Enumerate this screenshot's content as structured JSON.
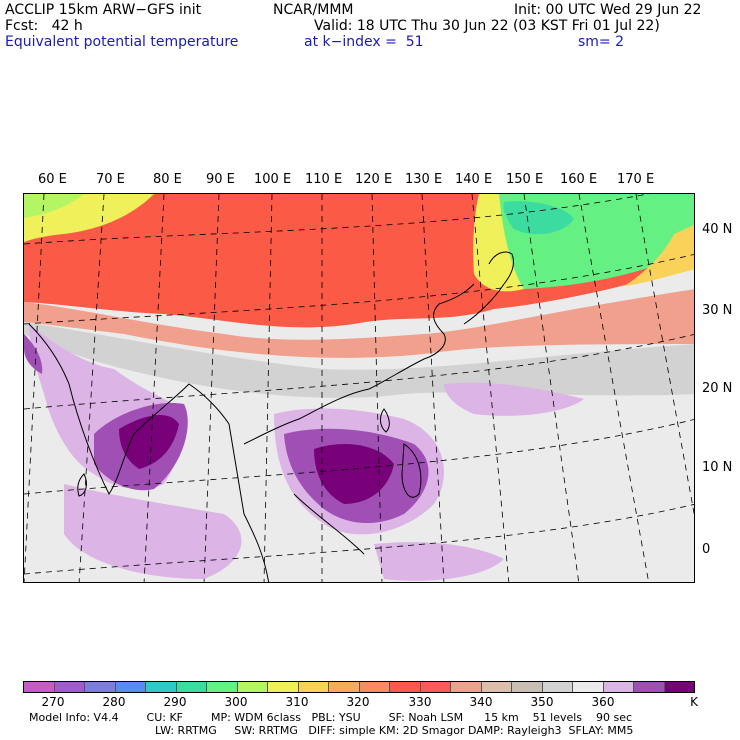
{
  "header": {
    "line1_left": "ACCLIP 15km ARW−GFS init",
    "line1_mid": "NCAR/MMM",
    "line1_right": "Init: 00 UTC Wed 29 Jun 22",
    "line2_left": "Fcst:   42 h",
    "line2_right": "Valid: 18 UTC Thu 30 Jun 22 (03 KST Fri 01 Jul 22)",
    "line3_left": "Equivalent potential temperature",
    "line3_mid": "at k−index =  51",
    "line3_right": "sm= 2"
  },
  "lon_labels": [
    "60 E",
    "70 E",
    "80 E",
    "90 E",
    "100 E",
    "110 E",
    "120 E",
    "130 E",
    "140 E",
    "150 E",
    "160 E",
    "170 E"
  ],
  "lat_labels": [
    "40 N",
    "30 N",
    "20 N",
    "10 N",
    "0"
  ],
  "colorbar": {
    "colors": [
      "#c85ac8",
      "#a05ad2",
      "#7d7de1",
      "#5a8cf0",
      "#32c8c8",
      "#3cdca0",
      "#64f082",
      "#b4f564",
      "#f0f05a",
      "#fad25a",
      "#faaa5a",
      "#fa8c5a",
      "#fa5a46",
      "#fa5a5a",
      "#f0a08c",
      "#dcbeaa",
      "#c8beb4",
      "#d2d2d2",
      "#ebebeb",
      "#dcb4e6",
      "#a050b4",
      "#780078"
    ],
    "tick_labels": [
      "270",
      "280",
      "290",
      "300",
      "310",
      "320",
      "330",
      "340",
      "350",
      "360"
    ],
    "unit": "K"
  },
  "footer": {
    "line1": "Model Info: V4.4        CU: KF        MP: WDM 6class   PBL: YSU        SF: Noah LSM      15 km    51 levels    90 sec",
    "line2": "LW: RRTMG     SW: RRTMG   DIFF: simple KM: 2D Smagor DAMP: Rayleigh3  SFLAY: MM5"
  }
}
